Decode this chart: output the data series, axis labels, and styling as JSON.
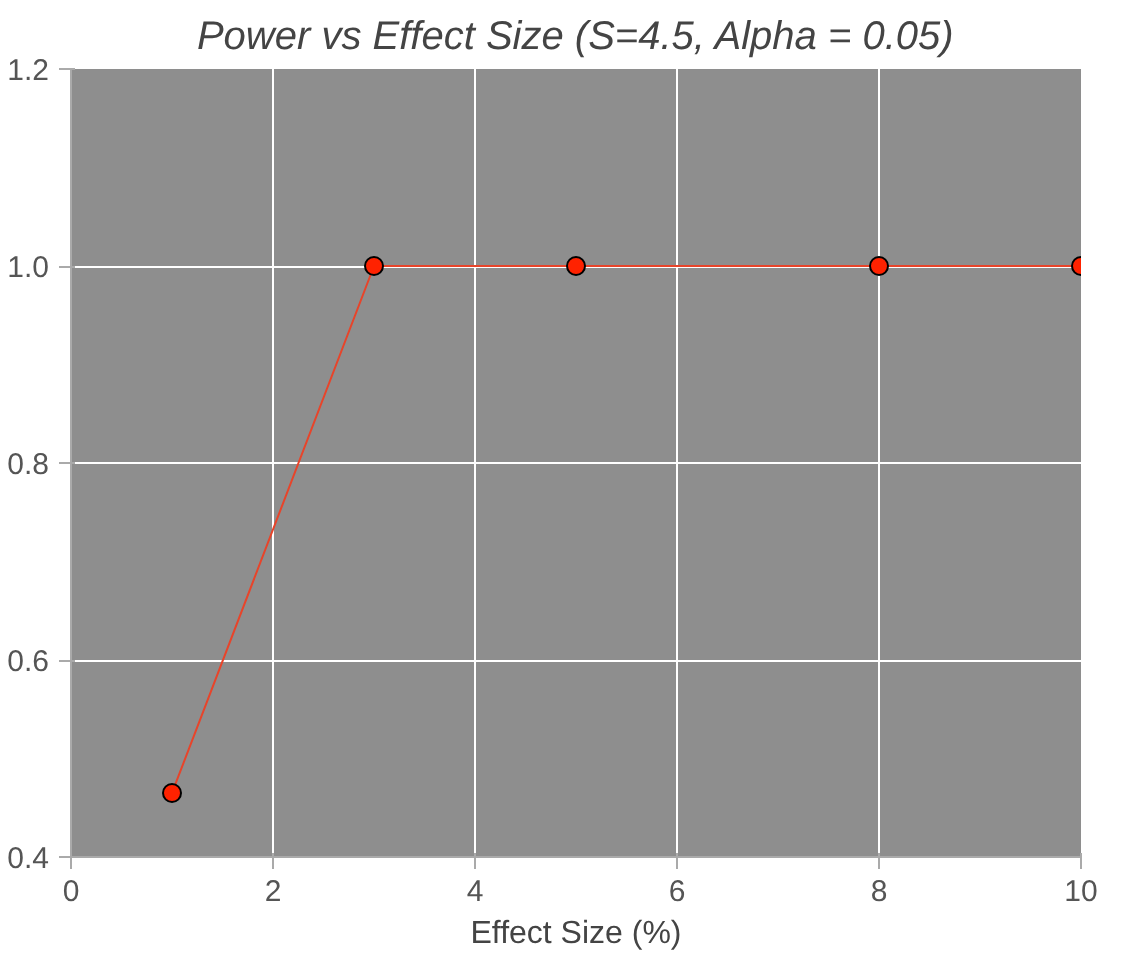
{
  "chart_data": {
    "type": "line",
    "title": "Power vs Effect Size (S=4.5, Alpha = 0.05)",
    "xlabel": "Effect Size (%)",
    "x": [
      1,
      3,
      5,
      8,
      10
    ],
    "series": [
      {
        "color": "#e8442a",
        "values": [
          0.465,
          1.0,
          1.0,
          1.0,
          1.0
        ]
      }
    ],
    "xlim": [
      0,
      10
    ],
    "xticks": [
      0,
      2,
      4,
      6,
      8,
      10
    ],
    "ylim": [
      0.4,
      1.2
    ],
    "yticks": [
      0.4,
      0.6,
      0.8,
      {
        "value": 1,
        "label": "1.0"
      },
      1.2
    ],
    "grid": true,
    "marker": "circle",
    "line_style": "solid"
  }
}
